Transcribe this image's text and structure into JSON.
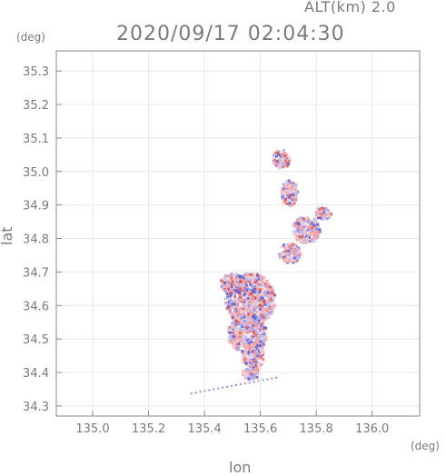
{
  "header": {
    "altitude_label": "ALT(km)  2.0",
    "datetime": "2020/09/17 02:04:30"
  },
  "axes": {
    "y_unit": "(deg)",
    "x_unit": "(deg)",
    "y_label": "lat",
    "x_label": "lon",
    "x_ticks": [
      "135.0",
      "135.2",
      "135.4",
      "135.6",
      "135.8",
      "136.0"
    ],
    "y_ticks": [
      "35.3",
      "35.2",
      "35.1",
      "35.0",
      "34.9",
      "34.8",
      "34.7",
      "34.6",
      "34.5",
      "34.4",
      "34.3"
    ],
    "x_range": [
      134.87,
      136.17
    ],
    "y_range": [
      34.27,
      35.36
    ],
    "grid": true
  },
  "colors": {
    "axis": "#8a8a8a",
    "grid": "#e8e8e8",
    "positive": "#f4a4a4",
    "positive_strong": "#e05050",
    "negative": "#a8aef4",
    "negative_strong": "#5060e0"
  },
  "echo_regions": [
    {
      "lon": 135.56,
      "lat": 34.62,
      "rlon": 0.09,
      "rlat": 0.08
    },
    {
      "lon": 135.55,
      "lat": 34.52,
      "rlon": 0.07,
      "rlat": 0.06
    },
    {
      "lon": 135.57,
      "lat": 34.46,
      "rlon": 0.04,
      "rlat": 0.05
    },
    {
      "lon": 135.5,
      "lat": 34.67,
      "rlon": 0.05,
      "rlat": 0.03
    },
    {
      "lon": 135.67,
      "lat": 35.04,
      "rlon": 0.03,
      "rlat": 0.03
    },
    {
      "lon": 135.7,
      "lat": 34.94,
      "rlon": 0.03,
      "rlat": 0.04
    },
    {
      "lon": 135.76,
      "lat": 34.83,
      "rlon": 0.05,
      "rlat": 0.04
    },
    {
      "lon": 135.7,
      "lat": 34.76,
      "rlon": 0.04,
      "rlat": 0.03
    },
    {
      "lon": 135.82,
      "lat": 34.88,
      "rlon": 0.03,
      "rlat": 0.02
    },
    {
      "lon": 135.56,
      "lat": 34.4,
      "rlon": 0.03,
      "rlat": 0.02
    }
  ]
}
